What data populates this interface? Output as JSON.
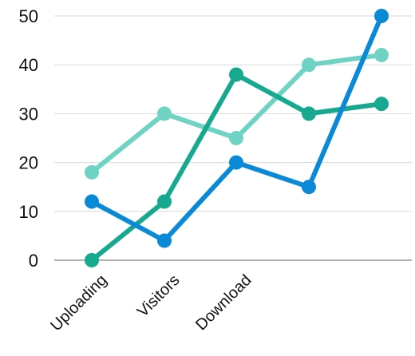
{
  "chart_data": {
    "type": "line",
    "title": "",
    "xlabel": "",
    "ylabel": "",
    "ylim": [
      0,
      50
    ],
    "yticks": [
      0,
      10,
      20,
      30,
      40,
      50
    ],
    "grid": true,
    "legend": "none",
    "categories": [
      "Uploading",
      "Visitors",
      "Download",
      "",
      ""
    ],
    "series": [
      {
        "color": "#6fd3c4",
        "values": [
          18,
          30,
          25,
          40,
          42
        ]
      },
      {
        "color": "#17a890",
        "values": [
          0,
          12,
          38,
          30,
          32
        ]
      },
      {
        "color": "#0a8ad6",
        "values": [
          12,
          4,
          20,
          15,
          50
        ]
      }
    ]
  }
}
